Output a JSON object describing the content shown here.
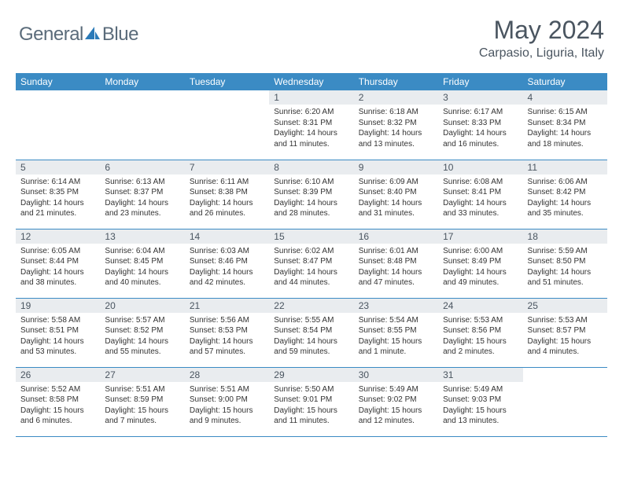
{
  "logo": {
    "text1": "General",
    "text2": "Blue"
  },
  "title": "May 2024",
  "location": "Carpasio, Liguria, Italy",
  "colors": {
    "header_bg": "#3b8bc4",
    "header_fg": "#ffffff",
    "daynum_bg": "#e9ecef",
    "text": "#4a5560",
    "logo_blue": "#2a7ab8"
  },
  "weekdays": [
    "Sunday",
    "Monday",
    "Tuesday",
    "Wednesday",
    "Thursday",
    "Friday",
    "Saturday"
  ],
  "weeks": [
    [
      {
        "n": "",
        "sr": "",
        "ss": "",
        "dl": ""
      },
      {
        "n": "",
        "sr": "",
        "ss": "",
        "dl": ""
      },
      {
        "n": "",
        "sr": "",
        "ss": "",
        "dl": ""
      },
      {
        "n": "1",
        "sr": "Sunrise: 6:20 AM",
        "ss": "Sunset: 8:31 PM",
        "dl": "Daylight: 14 hours and 11 minutes."
      },
      {
        "n": "2",
        "sr": "Sunrise: 6:18 AM",
        "ss": "Sunset: 8:32 PM",
        "dl": "Daylight: 14 hours and 13 minutes."
      },
      {
        "n": "3",
        "sr": "Sunrise: 6:17 AM",
        "ss": "Sunset: 8:33 PM",
        "dl": "Daylight: 14 hours and 16 minutes."
      },
      {
        "n": "4",
        "sr": "Sunrise: 6:15 AM",
        "ss": "Sunset: 8:34 PM",
        "dl": "Daylight: 14 hours and 18 minutes."
      }
    ],
    [
      {
        "n": "5",
        "sr": "Sunrise: 6:14 AM",
        "ss": "Sunset: 8:35 PM",
        "dl": "Daylight: 14 hours and 21 minutes."
      },
      {
        "n": "6",
        "sr": "Sunrise: 6:13 AM",
        "ss": "Sunset: 8:37 PM",
        "dl": "Daylight: 14 hours and 23 minutes."
      },
      {
        "n": "7",
        "sr": "Sunrise: 6:11 AM",
        "ss": "Sunset: 8:38 PM",
        "dl": "Daylight: 14 hours and 26 minutes."
      },
      {
        "n": "8",
        "sr": "Sunrise: 6:10 AM",
        "ss": "Sunset: 8:39 PM",
        "dl": "Daylight: 14 hours and 28 minutes."
      },
      {
        "n": "9",
        "sr": "Sunrise: 6:09 AM",
        "ss": "Sunset: 8:40 PM",
        "dl": "Daylight: 14 hours and 31 minutes."
      },
      {
        "n": "10",
        "sr": "Sunrise: 6:08 AM",
        "ss": "Sunset: 8:41 PM",
        "dl": "Daylight: 14 hours and 33 minutes."
      },
      {
        "n": "11",
        "sr": "Sunrise: 6:06 AM",
        "ss": "Sunset: 8:42 PM",
        "dl": "Daylight: 14 hours and 35 minutes."
      }
    ],
    [
      {
        "n": "12",
        "sr": "Sunrise: 6:05 AM",
        "ss": "Sunset: 8:44 PM",
        "dl": "Daylight: 14 hours and 38 minutes."
      },
      {
        "n": "13",
        "sr": "Sunrise: 6:04 AM",
        "ss": "Sunset: 8:45 PM",
        "dl": "Daylight: 14 hours and 40 minutes."
      },
      {
        "n": "14",
        "sr": "Sunrise: 6:03 AM",
        "ss": "Sunset: 8:46 PM",
        "dl": "Daylight: 14 hours and 42 minutes."
      },
      {
        "n": "15",
        "sr": "Sunrise: 6:02 AM",
        "ss": "Sunset: 8:47 PM",
        "dl": "Daylight: 14 hours and 44 minutes."
      },
      {
        "n": "16",
        "sr": "Sunrise: 6:01 AM",
        "ss": "Sunset: 8:48 PM",
        "dl": "Daylight: 14 hours and 47 minutes."
      },
      {
        "n": "17",
        "sr": "Sunrise: 6:00 AM",
        "ss": "Sunset: 8:49 PM",
        "dl": "Daylight: 14 hours and 49 minutes."
      },
      {
        "n": "18",
        "sr": "Sunrise: 5:59 AM",
        "ss": "Sunset: 8:50 PM",
        "dl": "Daylight: 14 hours and 51 minutes."
      }
    ],
    [
      {
        "n": "19",
        "sr": "Sunrise: 5:58 AM",
        "ss": "Sunset: 8:51 PM",
        "dl": "Daylight: 14 hours and 53 minutes."
      },
      {
        "n": "20",
        "sr": "Sunrise: 5:57 AM",
        "ss": "Sunset: 8:52 PM",
        "dl": "Daylight: 14 hours and 55 minutes."
      },
      {
        "n": "21",
        "sr": "Sunrise: 5:56 AM",
        "ss": "Sunset: 8:53 PM",
        "dl": "Daylight: 14 hours and 57 minutes."
      },
      {
        "n": "22",
        "sr": "Sunrise: 5:55 AM",
        "ss": "Sunset: 8:54 PM",
        "dl": "Daylight: 14 hours and 59 minutes."
      },
      {
        "n": "23",
        "sr": "Sunrise: 5:54 AM",
        "ss": "Sunset: 8:55 PM",
        "dl": "Daylight: 15 hours and 1 minute."
      },
      {
        "n": "24",
        "sr": "Sunrise: 5:53 AM",
        "ss": "Sunset: 8:56 PM",
        "dl": "Daylight: 15 hours and 2 minutes."
      },
      {
        "n": "25",
        "sr": "Sunrise: 5:53 AM",
        "ss": "Sunset: 8:57 PM",
        "dl": "Daylight: 15 hours and 4 minutes."
      }
    ],
    [
      {
        "n": "26",
        "sr": "Sunrise: 5:52 AM",
        "ss": "Sunset: 8:58 PM",
        "dl": "Daylight: 15 hours and 6 minutes."
      },
      {
        "n": "27",
        "sr": "Sunrise: 5:51 AM",
        "ss": "Sunset: 8:59 PM",
        "dl": "Daylight: 15 hours and 7 minutes."
      },
      {
        "n": "28",
        "sr": "Sunrise: 5:51 AM",
        "ss": "Sunset: 9:00 PM",
        "dl": "Daylight: 15 hours and 9 minutes."
      },
      {
        "n": "29",
        "sr": "Sunrise: 5:50 AM",
        "ss": "Sunset: 9:01 PM",
        "dl": "Daylight: 15 hours and 11 minutes."
      },
      {
        "n": "30",
        "sr": "Sunrise: 5:49 AM",
        "ss": "Sunset: 9:02 PM",
        "dl": "Daylight: 15 hours and 12 minutes."
      },
      {
        "n": "31",
        "sr": "Sunrise: 5:49 AM",
        "ss": "Sunset: 9:03 PM",
        "dl": "Daylight: 15 hours and 13 minutes."
      },
      {
        "n": "",
        "sr": "",
        "ss": "",
        "dl": ""
      }
    ]
  ]
}
